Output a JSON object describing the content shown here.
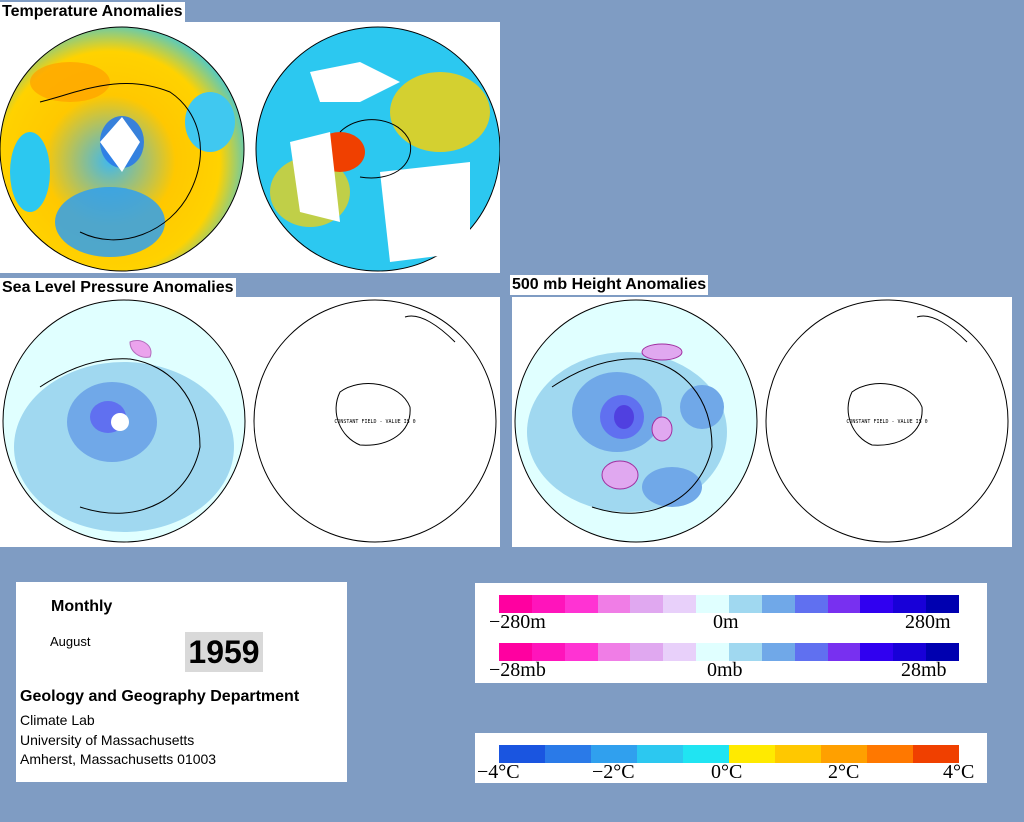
{
  "titles": {
    "temperature": "Temperature Anomalies",
    "slp": "Sea Level Pressure Anomalies",
    "height500": "500 mb Height Anomalies"
  },
  "map_annotation": "CONSTANT FIELD - VALUE IS 0",
  "info": {
    "period": "Monthly",
    "month": "August",
    "year": "1959",
    "department": "Geology and Geography Department",
    "lab": "Climate Lab",
    "university": "University of Massachusetts",
    "address": "Amherst, Massachusetts 01003"
  },
  "legends": {
    "height": {
      "labels": [
        "−280m",
        "0m",
        "280m"
      ],
      "colors": [
        "#ff00a0",
        "#ff14bb",
        "#ff33d3",
        "#f07de6",
        "#e0a8f0",
        "#e8d0fa",
        "#e0ffff",
        "#a0d8f0",
        "#70a8e8",
        "#6070f0",
        "#7830f0",
        "#3000f0",
        "#1800d8",
        "#0000b0"
      ]
    },
    "pressure": {
      "labels": [
        "−28mb",
        "0mb",
        "28mb"
      ],
      "colors": [
        "#ff00a0",
        "#ff14bb",
        "#ff33d3",
        "#f07de6",
        "#e0a8f0",
        "#e8d0fa",
        "#e0ffff",
        "#a0d8f0",
        "#70a8e8",
        "#6070f0",
        "#7830f0",
        "#3000f0",
        "#1800d8",
        "#0000b0"
      ]
    },
    "temperature": {
      "labels": [
        "−4°C",
        "−2°C",
        "0°C",
        "2°C",
        "4°C"
      ],
      "colors": [
        "#1a55e0",
        "#2a7ae8",
        "#30a0ee",
        "#2cc8f0",
        "#20e4f2",
        "#ffea00",
        "#ffc800",
        "#ffa000",
        "#ff7800",
        "#f04000"
      ]
    }
  }
}
